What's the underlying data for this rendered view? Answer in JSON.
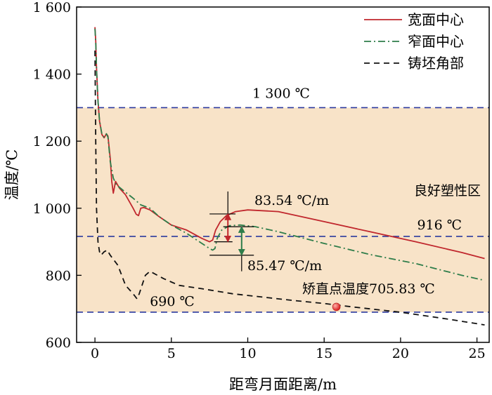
{
  "chart_data": {
    "type": "line",
    "xlabel": "距弯月面距离/m",
    "ylabel": "温度/℃",
    "xlim": [
      -1.2,
      25.8
    ],
    "ylim": [
      600,
      1600
    ],
    "x_ticks": [
      0,
      5,
      10,
      15,
      20,
      25
    ],
    "y_ticks": [
      600,
      800,
      1000,
      1200,
      1400,
      1600
    ],
    "x_tick_labels": [
      "0",
      "5",
      "10",
      "15",
      "20",
      "25"
    ],
    "y_tick_labels": [
      "600",
      "800",
      "1 000",
      "1 200",
      "1 400",
      "1 600"
    ],
    "grid": false,
    "legend_position": "top-right",
    "band": {
      "from": 690,
      "to": 1300,
      "color": "#f8e3c8"
    },
    "reference_lines": [
      {
        "value": 1300,
        "label": "1 300 ℃",
        "color": "#2b3a9e"
      },
      {
        "value": 916,
        "label": "916 ℃",
        "color": "#2b3a9e"
      },
      {
        "value": 690,
        "label": "690 ℃",
        "color": "#2b3a9e"
      }
    ],
    "region_label": "良好塑性区",
    "annotations": [
      {
        "text": "83.54 ℃/m"
      },
      {
        "text": "85.47 ℃/m"
      },
      {
        "text": "矫直点温度705.83 ℃",
        "x": 15.8,
        "y": 705.83
      }
    ],
    "series": [
      {
        "name": "宽面中心",
        "color": "#c0272d",
        "dash": "solid",
        "points": [
          [
            0,
            1540
          ],
          [
            0.05,
            1500
          ],
          [
            0.1,
            1420
          ],
          [
            0.2,
            1320
          ],
          [
            0.3,
            1260
          ],
          [
            0.45,
            1220
          ],
          [
            0.6,
            1210
          ],
          [
            0.75,
            1222
          ],
          [
            0.85,
            1215
          ],
          [
            1.0,
            1150
          ],
          [
            1.1,
            1080
          ],
          [
            1.2,
            1045
          ],
          [
            1.35,
            1080
          ],
          [
            1.6,
            1060
          ],
          [
            2.0,
            1040
          ],
          [
            2.5,
            1000
          ],
          [
            2.7,
            982
          ],
          [
            2.85,
            978
          ],
          [
            3.0,
            1000
          ],
          [
            3.2,
            1002
          ],
          [
            3.6,
            995
          ],
          [
            4.2,
            975
          ],
          [
            5.0,
            950
          ],
          [
            6.0,
            935
          ],
          [
            7.0,
            910
          ],
          [
            7.5,
            900
          ],
          [
            7.7,
            905
          ],
          [
            7.9,
            935
          ],
          [
            8.2,
            960
          ],
          [
            8.6,
            978
          ],
          [
            9.2,
            990
          ],
          [
            10,
            995
          ],
          [
            12,
            990
          ],
          [
            15,
            960
          ],
          [
            18,
            930
          ],
          [
            21,
            900
          ],
          [
            24,
            868
          ],
          [
            25.5,
            850
          ]
        ]
      },
      {
        "name": "窄面中心",
        "color": "#2e7d4a",
        "dash": "dashdot",
        "points": [
          [
            0,
            1535
          ],
          [
            0.05,
            1495
          ],
          [
            0.1,
            1415
          ],
          [
            0.2,
            1320
          ],
          [
            0.3,
            1262
          ],
          [
            0.45,
            1222
          ],
          [
            0.6,
            1212
          ],
          [
            0.75,
            1222
          ],
          [
            0.85,
            1212
          ],
          [
            1.0,
            1140
          ],
          [
            1.2,
            1090
          ],
          [
            1.4,
            1070
          ],
          [
            1.8,
            1055
          ],
          [
            2.5,
            1030
          ],
          [
            3.0,
            1010
          ],
          [
            3.6,
            1000
          ],
          [
            4.2,
            975
          ],
          [
            5.0,
            950
          ],
          [
            6.0,
            925
          ],
          [
            7.0,
            895
          ],
          [
            7.5,
            880
          ],
          [
            7.7,
            875
          ],
          [
            7.85,
            880
          ],
          [
            8.0,
            910
          ],
          [
            8.3,
            935
          ],
          [
            8.8,
            948
          ],
          [
            9.5,
            950
          ],
          [
            10.5,
            945
          ],
          [
            12,
            930
          ],
          [
            15,
            895
          ],
          [
            18,
            862
          ],
          [
            21,
            835
          ],
          [
            24,
            800
          ],
          [
            25.5,
            785
          ]
        ]
      },
      {
        "name": "铸坯角部",
        "color": "#111111",
        "dash": "dashed",
        "points": [
          [
            0,
            1470
          ],
          [
            0.05,
            1200
          ],
          [
            0.1,
            1000
          ],
          [
            0.2,
            900
          ],
          [
            0.3,
            870
          ],
          [
            0.4,
            860
          ],
          [
            0.6,
            870
          ],
          [
            0.8,
            875
          ],
          [
            1.0,
            860
          ],
          [
            1.5,
            830
          ],
          [
            2.0,
            770
          ],
          [
            2.5,
            745
          ],
          [
            2.75,
            730
          ],
          [
            2.9,
            745
          ],
          [
            3.3,
            800
          ],
          [
            3.6,
            812
          ],
          [
            4.5,
            790
          ],
          [
            5.5,
            770
          ],
          [
            7,
            760
          ],
          [
            9,
            745
          ],
          [
            11,
            735
          ],
          [
            13,
            725
          ],
          [
            15,
            716
          ],
          [
            17,
            705
          ],
          [
            20,
            690
          ],
          [
            23,
            670
          ],
          [
            25.5,
            652
          ]
        ]
      }
    ]
  }
}
